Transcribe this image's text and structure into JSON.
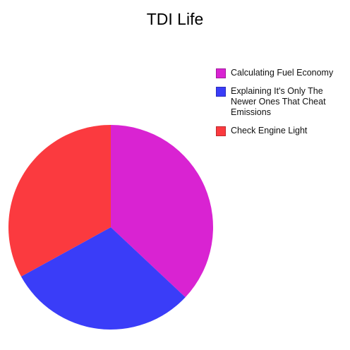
{
  "chart_data": {
    "type": "pie",
    "title": "TDI Life",
    "categories": [
      "Calculating Fuel Economy",
      "Explaining It's Only The Newer Ones That Cheat Emissions",
      "Check Engine Light"
    ],
    "values": [
      37,
      30,
      33
    ],
    "colors": [
      "#d923d2",
      "#3a3df8",
      "#fb3a3f"
    ]
  }
}
